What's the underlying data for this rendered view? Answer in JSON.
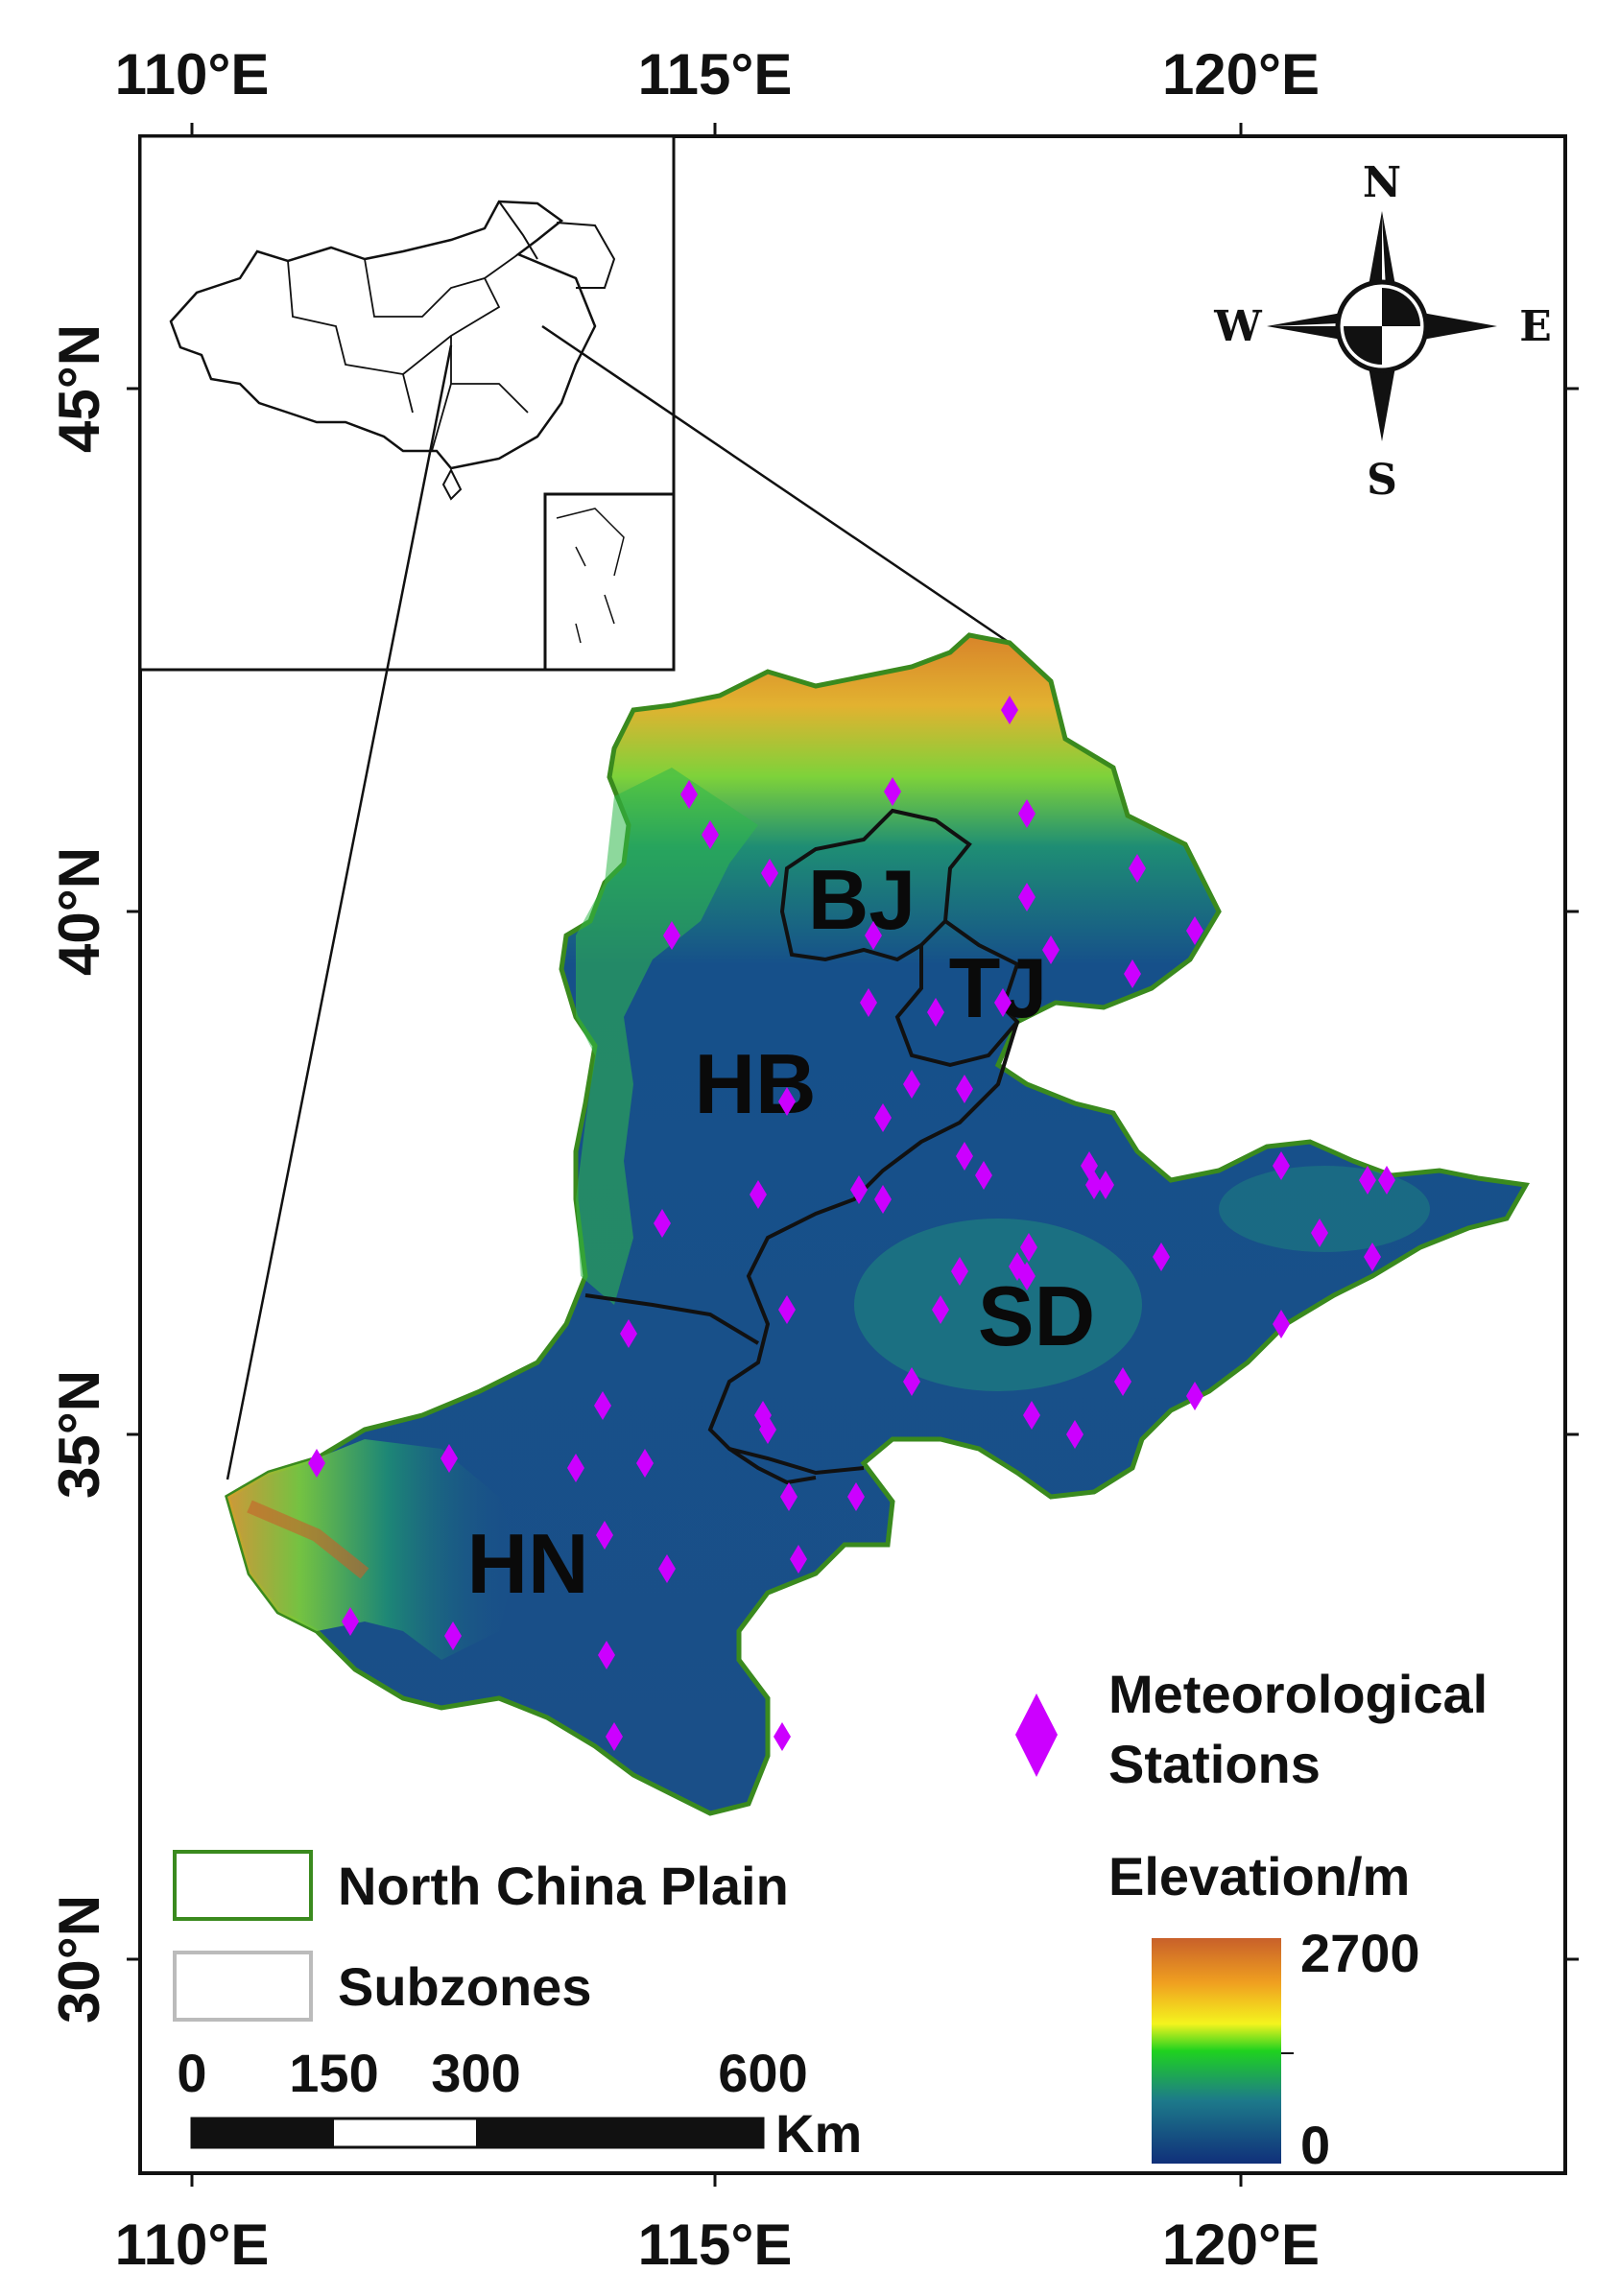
{
  "axes": {
    "lon_top": [
      "110°E",
      "115°E",
      "120°E"
    ],
    "lon_bottom": [
      "110°E",
      "115°E",
      "120°E"
    ],
    "lat_left": [
      "45°N",
      "40°N",
      "35°N",
      "30°N"
    ]
  },
  "compass": {
    "n": "N",
    "s": "S",
    "e": "E",
    "w": "W"
  },
  "regions": [
    "BJ",
    "TJ",
    "HB",
    "SD",
    "HN"
  ],
  "legend": {
    "stations_line1": "Meteorological",
    "stations_line2": "Stations",
    "plain_label": "North China Plain",
    "subzones_label": "Subzones",
    "elevation_title": "Elevation/m",
    "elevation_max": "2700",
    "elevation_min": "0"
  },
  "scalebar": {
    "t0": "0",
    "t150": "150",
    "t300": "300",
    "t600": "600",
    "unit": "Km"
  },
  "colors": {
    "station": "#cc00ff",
    "plain_outline": "#3a8a1e",
    "elev_high": "#c8602a",
    "elev_mid": "#1fd21f",
    "elev_low": "#12357a"
  }
}
